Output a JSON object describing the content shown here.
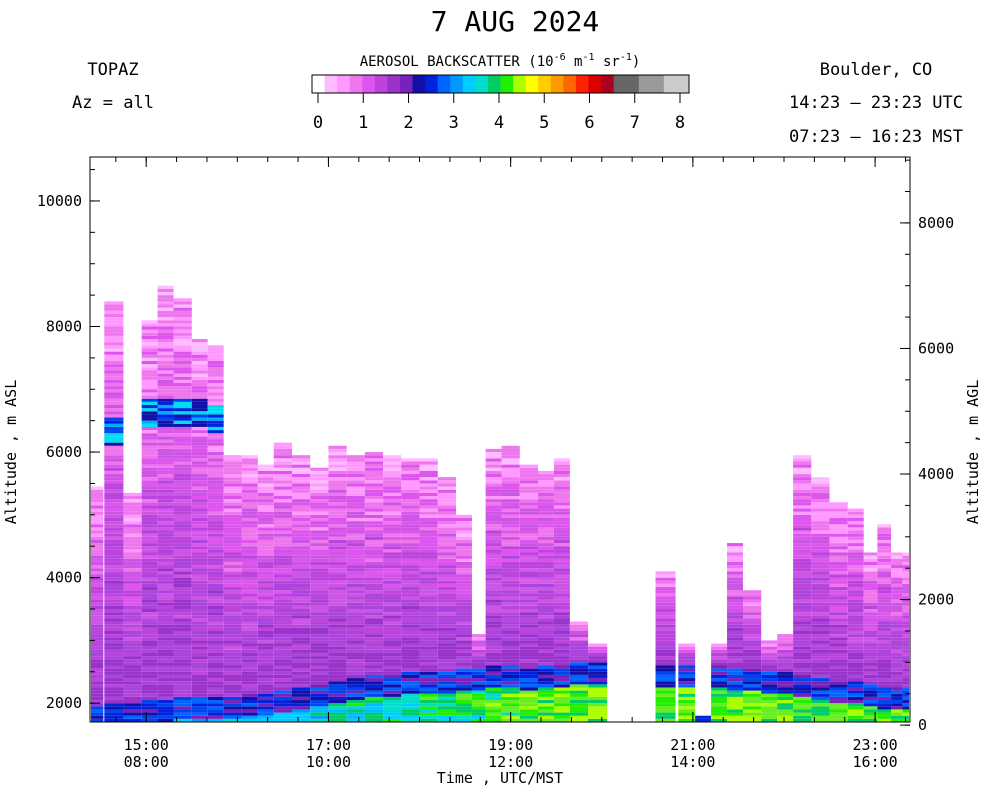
{
  "chart_data": {
    "type": "heatmap",
    "title": "7 AUG 2024",
    "instrument": "TOPAZ",
    "azimuth": "Az = all",
    "location": "Boulder, CO",
    "time_range_utc": "14:23 – 23:23 UTC",
    "time_range_mst": "07:23 – 16:23 MST",
    "colorbar": {
      "title": "AEROSOL BACKSCATTER (10",
      "title_exp": "-6",
      "title_unit1": " m",
      "title_exp2": "-1",
      "title_unit2": " sr",
      "title_exp3": "-1",
      "title_end": ")",
      "ticks": [
        "0",
        "1",
        "2",
        "3",
        "4",
        "5",
        "6",
        "7",
        "8"
      ],
      "range": [
        0,
        8
      ],
      "colors": [
        "#ffffff",
        "#ffbbff",
        "#ff99ff",
        "#ee77ee",
        "#dd55ee",
        "#bb44dd",
        "#9933cc",
        "#7722bb",
        "#1111aa",
        "#0022dd",
        "#0066ff",
        "#0099ff",
        "#00ccff",
        "#00ddcc",
        "#00cc66",
        "#22ee00",
        "#aaff00",
        "#ffff00",
        "#ffcc00",
        "#ff9900",
        "#ff6600",
        "#ff2200",
        "#dd0000",
        "#aa0022",
        "#666666",
        "#666666",
        "#999999",
        "#999999",
        "#cccccc",
        "#cccccc"
      ]
    },
    "xlabel": "Time , UTC/MST",
    "ylabel_left": "Altitude , m ASL",
    "ylabel_right": "Altitude , m AGL",
    "x_ticks_utc": [
      "15:00",
      "17:00",
      "19:00",
      "21:00",
      "23:00"
    ],
    "x_ticks_mst": [
      "08:00",
      "10:00",
      "12:00",
      "14:00",
      "16:00"
    ],
    "x_tick_hours": [
      15,
      17,
      19,
      21,
      23
    ],
    "xlim_hours_utc": [
      14.383,
      23.383
    ],
    "ylim_asl": [
      1700,
      10700
    ],
    "y_ticks_asl": [
      2000,
      4000,
      6000,
      8000,
      10000
    ],
    "y_ticks_agl": [
      0,
      2000,
      4000,
      6000,
      8000
    ],
    "ground_offset_m": 1650,
    "profiles": [
      {
        "t": 14.42,
        "top": 5450,
        "mix": 1950
      },
      {
        "t": 14.65,
        "top": 8400,
        "mix": 2000,
        "layer": 6300
      },
      {
        "t": 14.85,
        "top": 5350,
        "mix": 2000
      },
      {
        "t": 15.05,
        "top": 8100,
        "mix": 2050,
        "layer": 6600
      },
      {
        "t": 15.2,
        "top": 8650,
        "mix": 2050,
        "layer": 6600
      },
      {
        "t": 15.4,
        "top": 8450,
        "mix": 2100,
        "layer": 6600
      },
      {
        "t": 15.6,
        "top": 7800,
        "mix": 2100,
        "layer": 6600
      },
      {
        "t": 15.75,
        "top": 7700,
        "mix": 2100,
        "layer": 6500
      },
      {
        "t": 15.95,
        "top": 5950,
        "mix": 2100
      },
      {
        "t": 16.15,
        "top": 5950,
        "mix": 2150
      },
      {
        "t": 16.3,
        "top": 5800,
        "mix": 2150
      },
      {
        "t": 16.5,
        "top": 6150,
        "mix": 2200
      },
      {
        "t": 16.7,
        "top": 5950,
        "mix": 2250
      },
      {
        "t": 16.9,
        "top": 5750,
        "mix": 2300
      },
      {
        "t": 17.1,
        "top": 6100,
        "mix": 2350
      },
      {
        "t": 17.3,
        "top": 5950,
        "mix": 2400
      },
      {
        "t": 17.5,
        "top": 6000,
        "mix": 2450
      },
      {
        "t": 17.7,
        "top": 5950,
        "mix": 2450
      },
      {
        "t": 17.9,
        "top": 5900,
        "mix": 2500
      },
      {
        "t": 18.1,
        "top": 5900,
        "mix": 2500
      },
      {
        "t": 18.3,
        "top": 5600,
        "mix": 2500
      },
      {
        "t": 18.5,
        "top": 5000,
        "mix": 2550
      },
      {
        "t": 18.65,
        "top": 3100,
        "mix": 2550
      },
      {
        "t": 18.8,
        "top": 6050,
        "mix": 2600
      },
      {
        "t": 19.0,
        "top": 6100,
        "mix": 2600
      },
      {
        "t": 19.2,
        "top": 5800,
        "mix": 2550
      },
      {
        "t": 19.4,
        "top": 5700,
        "mix": 2600
      },
      {
        "t": 19.55,
        "top": 5900,
        "mix": 2600
      },
      {
        "t": 19.75,
        "top": 3300,
        "mix": 2650
      },
      {
        "t": 19.95,
        "top": 2950,
        "mix": 2650
      },
      {
        "t": 20.7,
        "top": 4100,
        "mix": 2600
      },
      {
        "t": 20.95,
        "top": 2950,
        "mix": 2600
      },
      {
        "t": 21.1,
        "top": 1800,
        "mix": 1800
      },
      {
        "t": 21.3,
        "top": 2950,
        "mix": 2600
      },
      {
        "t": 21.45,
        "top": 4550,
        "mix": 2550
      },
      {
        "t": 21.65,
        "top": 3800,
        "mix": 2550
      },
      {
        "t": 21.85,
        "top": 3000,
        "mix": 2500
      },
      {
        "t": 22.0,
        "top": 3100,
        "mix": 2500
      },
      {
        "t": 22.2,
        "top": 5950,
        "mix": 2450
      },
      {
        "t": 22.4,
        "top": 5600,
        "mix": 2400
      },
      {
        "t": 22.6,
        "top": 5200,
        "mix": 2350
      },
      {
        "t": 22.8,
        "top": 5100,
        "mix": 2350
      },
      {
        "t": 22.95,
        "top": 4400,
        "mix": 2300
      },
      {
        "t": 23.1,
        "top": 4850,
        "mix": 2250
      },
      {
        "t": 23.25,
        "top": 4400,
        "mix": 2250
      },
      {
        "t": 23.35,
        "top": 4400,
        "mix": 2250
      }
    ]
  }
}
